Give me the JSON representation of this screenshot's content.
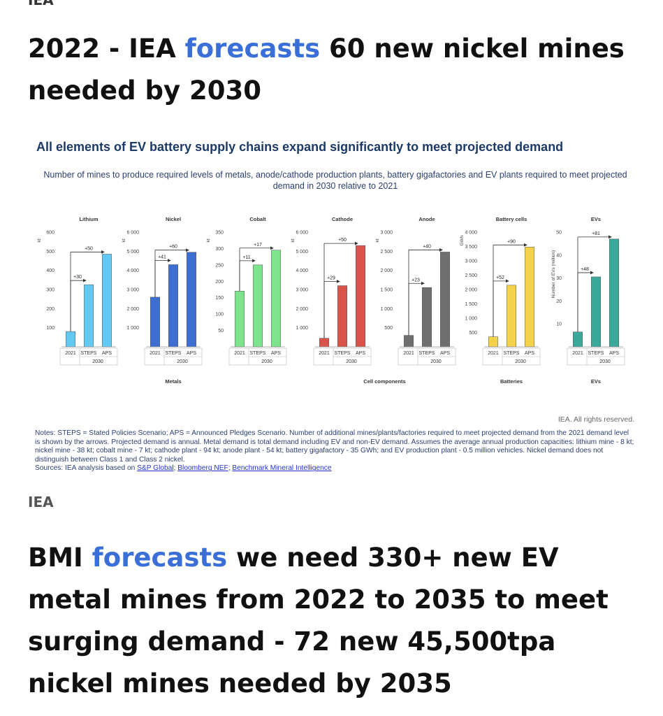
{
  "top_label": "IEA",
  "headline1": {
    "prefix": "2022 - IEA ",
    "link": "forecasts",
    "suffix": " 60 new nickel mines needed by 2030"
  },
  "headline2": {
    "prefix": "BMI ",
    "link": "forecasts",
    "suffix": " we need 330+ new EV metal mines from 2022 to 2035 to meet surging demand - 72 new 45,500tpa nickel mines needed by 2035"
  },
  "source_label": "IEA",
  "figure": {
    "title": "All elements of EV battery supply chains expand significantly to meet projected demand",
    "subtitle": "Number of mines to produce required levels of metals, anode/cathode production plants, battery gigafactories and EV plants required to meet projected demand in 2030 relative to 2021",
    "rights": "IEA. All rights reserved.",
    "notes": "Notes: STEPS = Stated Policies Scenario; APS = Announced Pledges Scenario. Number of additional mines/plants/factories required to meet projected demand from the 2021 demand level is shown by the arrows. Projected demand is annual. Metal demand is total demand including EV and non-EV demand. Assumes the average annual production capacities: lithium mine - 8 kt; nickel mine - 38 kt; cobalt mine - 7 kt; cathode plant - 94 kt; anode plant - 54 kt; battery gigafactory - 35 GWh; and EV production plant - 0.5 million vehicles. Nickel demand does not distinguish between Class 1 and Class 2 nickel.",
    "sources_prefix": "Sources: IEA analysis based on ",
    "sources_links": [
      "S&P Global",
      "Bloomberg NEF",
      "Benchmark Mineral Intelligence"
    ]
  },
  "chart_data": {
    "type": "bar",
    "categories": [
      "2021",
      "STEPS",
      "APS"
    ],
    "category_group_label": "2030",
    "groups": [
      {
        "label": "Metals",
        "panels": [
          0,
          1,
          2
        ]
      },
      {
        "label": "Cell components",
        "panels": [
          3,
          4
        ]
      },
      {
        "label": "Batteries",
        "panels": [
          5
        ]
      },
      {
        "label": "EVs",
        "panels": [
          6
        ]
      }
    ],
    "panels": [
      {
        "title": "Lithium",
        "unit": "kt",
        "ylim": [
          0,
          600
        ],
        "ticks": [
          100,
          200,
          300,
          400,
          500,
          600
        ],
        "tick_labels": [
          "100",
          "200",
          "300",
          "400",
          "500",
          "600"
        ],
        "values": [
          80,
          325,
          485
        ],
        "arrows": [
          "+30",
          "+50"
        ],
        "color": "#63c8f2"
      },
      {
        "title": "Nickel",
        "unit": "kt",
        "ylim": [
          0,
          6000
        ],
        "ticks": [
          1000,
          2000,
          3000,
          4000,
          5000,
          6000
        ],
        "tick_labels": [
          "1 000",
          "2 000",
          "3 000",
          "4 000",
          "5 000",
          "6 000"
        ],
        "values": [
          2600,
          4300,
          4950
        ],
        "arrows": [
          "+41",
          "+60"
        ],
        "color": "#3f6ed2"
      },
      {
        "title": "Cobalt",
        "unit": "kt",
        "ylim": [
          0,
          350
        ],
        "ticks": [
          50,
          100,
          150,
          200,
          250,
          300,
          350
        ],
        "tick_labels": [
          "50",
          "100",
          "150",
          "200",
          "250",
          "300",
          "350"
        ],
        "values": [
          170,
          250,
          295
        ],
        "arrows": [
          "+11",
          "+17"
        ],
        "color": "#7de38c"
      },
      {
        "title": "Cathode",
        "unit": "kt",
        "ylim": [
          0,
          6000
        ],
        "ticks": [
          1000,
          2000,
          3000,
          4000,
          5000,
          6000
        ],
        "tick_labels": [
          "1 000",
          "2 000",
          "3 000",
          "4 000",
          "5 000",
          "6 000"
        ],
        "values": [
          450,
          3200,
          5300
        ],
        "arrows": [
          "+29",
          "+50"
        ],
        "color": "#d9534a"
      },
      {
        "title": "Anode",
        "unit": "kt",
        "ylim": [
          0,
          3000
        ],
        "ticks": [
          500,
          1000,
          1500,
          2000,
          2500,
          3000
        ],
        "tick_labels": [
          "500",
          "1 000",
          "1 500",
          "2 000",
          "2 500",
          "3 000"
        ],
        "values": [
          300,
          1550,
          2480
        ],
        "arrows": [
          "+23",
          "+40"
        ],
        "color": "#6f6f6f"
      },
      {
        "title": "Battery cells",
        "unit": "GWh",
        "ylim": [
          0,
          4000
        ],
        "ticks": [
          500,
          1000,
          1500,
          2000,
          2500,
          3000,
          3500,
          4000
        ],
        "tick_labels": [
          "500",
          "1 000",
          "1 500",
          "2 000",
          "2 500",
          "3 000",
          "3 500",
          "4 000"
        ],
        "values": [
          350,
          2150,
          3480
        ],
        "arrows": [
          "+52",
          "+90"
        ],
        "color": "#f4d34a"
      },
      {
        "title": "EVs",
        "unit": "Number of EVs (million)",
        "ylim": [
          0,
          50
        ],
        "ticks": [
          10,
          20,
          30,
          40,
          50
        ],
        "tick_labels": [
          "10",
          "20",
          "30",
          "40",
          "50"
        ],
        "values": [
          6.5,
          30.5,
          47
        ],
        "arrows": [
          "+48",
          "+81"
        ],
        "color": "#3aa89a"
      }
    ]
  }
}
